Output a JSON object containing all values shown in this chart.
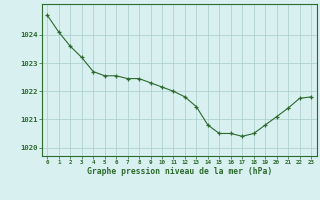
{
  "x": [
    0,
    1,
    2,
    3,
    4,
    5,
    6,
    7,
    8,
    9,
    10,
    11,
    12,
    13,
    14,
    15,
    16,
    17,
    18,
    19,
    20,
    21,
    22,
    23
  ],
  "y": [
    1024.7,
    1024.1,
    1023.6,
    1023.2,
    1022.7,
    1022.55,
    1022.55,
    1022.45,
    1022.45,
    1022.3,
    1022.15,
    1022.0,
    1021.8,
    1021.45,
    1020.8,
    1020.5,
    1020.5,
    1020.4,
    1020.5,
    1020.8,
    1021.1,
    1021.4,
    1021.75,
    1021.8
  ],
  "line_color": "#2d6a2d",
  "marker": "+",
  "marker_color": "#2d6a2d",
  "background_color": "#d8f0f0",
  "grid_color": "#aacccc",
  "xlabel": "Graphe pression niveau de la mer (hPa)",
  "xlabel_color": "#2d6a2d",
  "ylabel_ticks": [
    1020,
    1021,
    1022,
    1023,
    1024
  ],
  "ylim": [
    1019.7,
    1025.1
  ],
  "xlim": [
    -0.5,
    23.5
  ],
  "tick_label_color": "#2d6a2d",
  "spine_color": "#2d6a2d",
  "xtick_labels": [
    "0",
    "1",
    "2",
    "3",
    "4",
    "5",
    "6",
    "7",
    "8",
    "9",
    "10",
    "11",
    "12",
    "13",
    "14",
    "15",
    "16",
    "17",
    "18",
    "19",
    "20",
    "21",
    "22",
    "23"
  ]
}
